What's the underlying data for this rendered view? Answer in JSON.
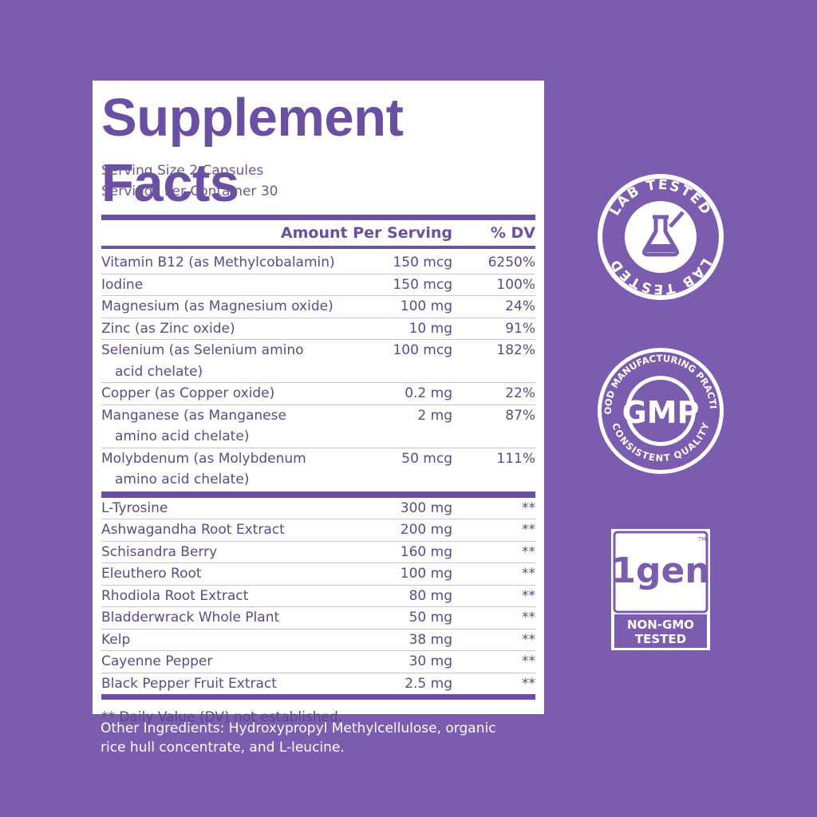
{
  "title": "Supplement Facts",
  "serving_size": "Serving Size 2 Capsules",
  "servings_per_container": "Servings Per Container 30",
  "table": {
    "header": [
      "Amount Per Serving",
      "% DV"
    ],
    "sections": [
      {
        "rows": [
          {
            "name": [
              "Vitamin B12 (as Methylcobalamin)"
            ],
            "amount": "150 mcg",
            "dv": "6250%"
          },
          {
            "name": [
              "Iodine"
            ],
            "amount": "150 mcg",
            "dv": "100%"
          },
          {
            "name": [
              "Magnesium (as Magnesium oxide)"
            ],
            "amount": "100 mg",
            "dv": "24%"
          },
          {
            "name": [
              "Zinc (as Zinc oxide)"
            ],
            "amount": "10 mg",
            "dv": "91%"
          },
          {
            "name": [
              "Selenium (as Selenium amino",
              "acid chelate)"
            ],
            "amount": "100 mcg",
            "dv": "182%"
          },
          {
            "name": [
              "Copper (as Copper oxide)"
            ],
            "amount": "0.2 mg",
            "dv": "22%"
          },
          {
            "name": [
              "Manganese (as Manganese",
              "amino acid chelate)"
            ],
            "amount": "2 mg",
            "dv": "87%"
          },
          {
            "name": [
              "Molybdenum (as Molybdenum",
              "amino acid chelate)"
            ],
            "amount": "50 mcg",
            "dv": "111%"
          }
        ]
      },
      {
        "rows": [
          {
            "name": [
              "L-Tyrosine"
            ],
            "amount": "300 mg",
            "dv": "**"
          },
          {
            "name": [
              "Ashwagandha Root Extract"
            ],
            "amount": "200 mg",
            "dv": "**"
          },
          {
            "name": [
              "Schisandra Berry"
            ],
            "amount": "160 mg",
            "dv": "**"
          },
          {
            "name": [
              "Eleuthero Root"
            ],
            "amount": "100 mg",
            "dv": "**"
          },
          {
            "name": [
              "Rhodiola Root Extract"
            ],
            "amount": "80 mg",
            "dv": "**"
          },
          {
            "name": [
              "Bladderwrack Whole Plant"
            ],
            "amount": "50 mg",
            "dv": "**"
          },
          {
            "name": [
              "Kelp"
            ],
            "amount": "38 mg",
            "dv": "**"
          },
          {
            "name": [
              "Cayenne Pepper"
            ],
            "amount": "30 mg",
            "dv": "**"
          },
          {
            "name": [
              "Black Pepper Fruit Extract"
            ],
            "amount": "2.5 mg",
            "dv": "**"
          }
        ]
      }
    ]
  },
  "footnote": "** Daily Value (DV) not established.",
  "other_ingredients": [
    "Other Ingredients: Hydroxypropyl Methylcellulose, organic",
    "rice hull concentrate, and L-leucine."
  ],
  "badges": {
    "lab_tested": {
      "top": "LAB TESTED",
      "bottom": "LAB TESTED"
    },
    "gmp": {
      "top": "GOOD MANUFACTURING PRACTICE",
      "center": "GMP",
      "bottom": "CONSISTENT QUALITY"
    },
    "non_gmo": {
      "logo": "1gen",
      "trademark": "TM",
      "label": [
        "NON-GMO",
        "TESTED"
      ]
    }
  }
}
